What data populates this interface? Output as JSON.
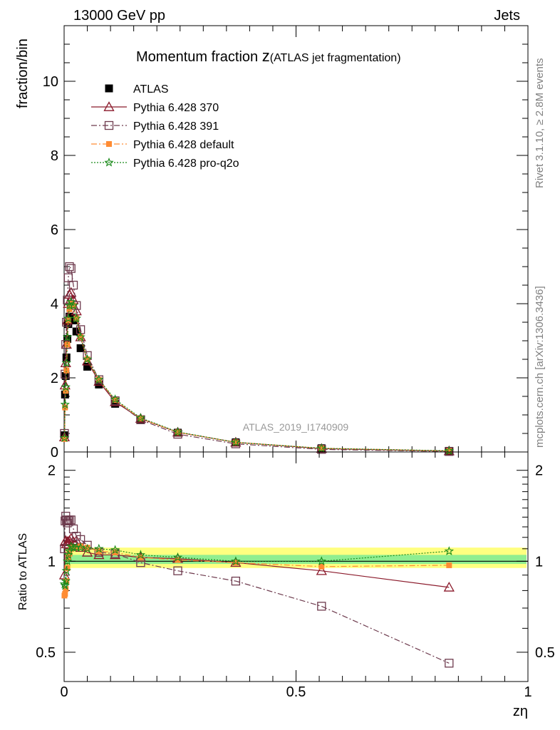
{
  "header": {
    "left": "13000 GeV pp",
    "right": "Jets"
  },
  "title": {
    "main": "Momentum fraction ",
    "z": "z",
    "paren": "(ATLAS jet fragmentation)"
  },
  "side_text": {
    "top": "Rivet 3.1.10, ≥ 2.8M events",
    "bottom": "mcplots.cern.ch [arXiv:1306.3436]"
  },
  "watermark": "ATLAS_2019_I1740909",
  "xlabel": "zη",
  "colors": {
    "atlas": "#000000",
    "p370": "#8b1a2b",
    "p391": "#6e3b4e",
    "pdefault": "#ff8c33",
    "pq2o": "#1a8a1a",
    "band_outer": "#ffff80",
    "band_inner": "#90ee90"
  },
  "chart_data": [
    {
      "type": "scatter",
      "panel": "main",
      "ylabel": "fraction/bin",
      "xlim": [
        0,
        1
      ],
      "ylim": [
        0,
        11.5
      ],
      "yticks": [
        0,
        2,
        4,
        6,
        8,
        10
      ],
      "x": [
        0.0007,
        0.002,
        0.0035,
        0.005,
        0.007,
        0.009,
        0.0115,
        0.015,
        0.02,
        0.0265,
        0.0355,
        0.05,
        0.075,
        0.11,
        0.165,
        0.245,
        0.37,
        0.555,
        0.83
      ],
      "series": [
        {
          "name": "ATLAS",
          "marker": "square-filled",
          "values": [
            0.45,
            1.55,
            2.05,
            2.55,
            3.05,
            3.45,
            3.65,
            3.62,
            3.55,
            3.25,
            2.8,
            2.3,
            1.82,
            1.3,
            0.88,
            0.52,
            0.26,
            0.1,
            0.03
          ]
        },
        {
          "name": "Pythia 6.428 370",
          "marker": "triangle-open",
          "values": [
            0.4,
            1.8,
            2.4,
            2.9,
            3.55,
            4.0,
            4.25,
            4.3,
            4.1,
            3.8,
            3.1,
            2.45,
            1.9,
            1.35,
            0.9,
            0.53,
            0.26,
            0.09,
            0.025
          ]
        },
        {
          "name": "Pythia 6.428 391",
          "marker": "square-open",
          "values": [
            0.5,
            2.1,
            2.9,
            3.5,
            4.1,
            4.7,
            5.0,
            4.95,
            4.5,
            3.95,
            3.3,
            2.6,
            1.95,
            1.38,
            0.87,
            0.48,
            0.22,
            0.07,
            0.014
          ]
        },
        {
          "name": "Pythia 6.428 default",
          "marker": "square-filled-small",
          "values": [
            0.35,
            1.2,
            1.65,
            2.2,
            2.9,
            3.55,
            3.85,
            4.0,
            3.95,
            3.6,
            3.1,
            2.5,
            1.95,
            1.4,
            0.9,
            0.53,
            0.26,
            0.1,
            0.029
          ]
        },
        {
          "name": "Pythia 6.428 pro-q2o",
          "marker": "star",
          "values": [
            0.38,
            1.28,
            1.75,
            2.4,
            3.1,
            3.6,
            3.95,
            4.05,
            3.95,
            3.6,
            3.1,
            2.5,
            1.95,
            1.42,
            0.92,
            0.54,
            0.26,
            0.1,
            0.032
          ]
        }
      ]
    },
    {
      "type": "scatter",
      "panel": "ratio",
      "ylabel": "Ratio to ATLAS",
      "xlabel": "zη",
      "xlim": [
        0,
        1
      ],
      "ylim": [
        0.4,
        2.3
      ],
      "yticks": [
        0.5,
        1,
        2
      ],
      "xticks": [
        0,
        0.5,
        1
      ],
      "x": [
        0.0007,
        0.002,
        0.0035,
        0.005,
        0.007,
        0.009,
        0.0115,
        0.015,
        0.02,
        0.0265,
        0.0355,
        0.05,
        0.075,
        0.11,
        0.165,
        0.245,
        0.37,
        0.555,
        0.83
      ],
      "band": {
        "outer": [
          0.95,
          1.11
        ],
        "inner": [
          0.98,
          1.05
        ]
      },
      "series": [
        {
          "name": "Pythia 6.428 370",
          "values": [
            0.9,
            1.16,
            1.17,
            1.14,
            1.16,
            1.16,
            1.17,
            1.19,
            1.16,
            1.17,
            1.11,
            1.07,
            1.05,
            1.05,
            1.03,
            1.02,
            0.99,
            0.93,
            0.82
          ]
        },
        {
          "name": "Pythia 6.428 391",
          "values": [
            1.1,
            1.36,
            1.41,
            1.37,
            1.34,
            1.36,
            1.37,
            1.37,
            1.28,
            1.21,
            1.18,
            1.13,
            1.07,
            1.06,
            0.99,
            0.93,
            0.86,
            0.71,
            0.46
          ]
        },
        {
          "name": "Pythia 6.428 default",
          "values": [
            0.77,
            0.78,
            0.81,
            0.86,
            0.95,
            1.03,
            1.06,
            1.1,
            1.11,
            1.11,
            1.12,
            1.11,
            1.08,
            1.07,
            1.03,
            1.01,
            0.99,
            0.96,
            0.97
          ]
        },
        {
          "name": "Pythia 6.428 pro-q2o",
          "values": [
            0.84,
            0.83,
            0.86,
            0.93,
            1.0,
            1.05,
            1.08,
            1.12,
            1.11,
            1.11,
            1.11,
            1.1,
            1.1,
            1.09,
            1.05,
            1.03,
            1.0,
            1.0,
            1.08
          ]
        }
      ]
    }
  ]
}
